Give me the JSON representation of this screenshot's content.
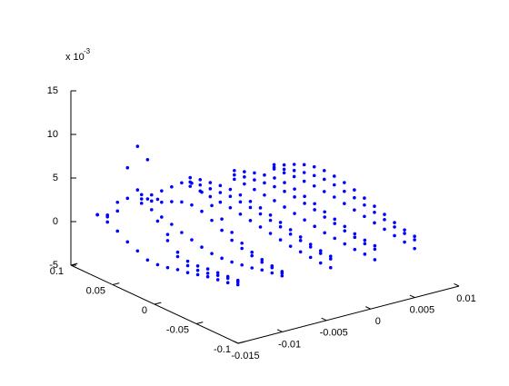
{
  "chart_data": {
    "type": "scatter3d",
    "color": "#0000ff",
    "z_multiplier": "x 10",
    "z_exponent": "-3",
    "xlim": [
      -0.015,
      0.01
    ],
    "xticks": [
      -0.015,
      -0.01,
      -0.005,
      0,
      0.005,
      0.01
    ],
    "ylim": [
      -0.1,
      0.1
    ],
    "yticks": [
      -0.1,
      -0.05,
      0,
      0.05,
      0.1
    ],
    "zlim": [
      -5,
      15
    ],
    "zticks": [
      -5,
      0,
      5,
      10,
      15
    ],
    "y": [
      0.1,
      0.088,
      0.076,
      0.064,
      0.052,
      0.04,
      0.028,
      0.016,
      0.004,
      -0.008,
      -0.02,
      -0.032,
      -0.044,
      -0.056,
      -0.068
    ],
    "series": [
      {
        "x": -0.012,
        "values": [
          0,
          0.5,
          2.5,
          7,
          10,
          9,
          5,
          1.5,
          0,
          -0.5,
          -0.5,
          -0.3,
          -0.2,
          -0.1,
          0
        ]
      },
      {
        "x": -0.012,
        "values": [
          0,
          0.3,
          1.5,
          3.5,
          5,
          4.5,
          2.5,
          0.8,
          -0.5,
          -1,
          -1,
          -0.8,
          -0.5,
          -0.3,
          -0.2
        ]
      },
      {
        "x": -0.012,
        "values": [
          0,
          -0.3,
          -0.8,
          -1.5,
          -2,
          -2.5,
          -2.5,
          -2.3,
          -2,
          -1.8,
          -1.5,
          -1.2,
          -1,
          -0.8,
          -0.5
        ]
      },
      {
        "x": -0.007,
        "values": [
          1,
          1.5,
          2.5,
          3.5,
          4.5,
          5,
          4.5,
          3.5,
          2.5,
          1.5,
          0.8,
          0.3,
          0,
          -0.2,
          -0.3
        ]
      },
      {
        "x": -0.007,
        "values": [
          0.5,
          0.8,
          1.2,
          1.8,
          2.3,
          2.5,
          2.3,
          1.8,
          1.2,
          0.6,
          0.2,
          -0.1,
          -0.3,
          -0.4,
          -0.5
        ]
      },
      {
        "x": -0.007,
        "values": [
          0,
          -0.2,
          -0.5,
          -0.8,
          -1.2,
          -1.5,
          -1.8,
          -2,
          -2,
          -1.9,
          -1.7,
          -1.5,
          -1.2,
          -1,
          -0.8
        ]
      },
      {
        "x": -0.0015,
        "values": [
          1.5,
          1.8,
          2,
          2.2,
          2.3,
          2.2,
          2,
          1.8,
          1.5,
          1.2,
          0.9,
          0.6,
          0.3,
          0.1,
          0
        ]
      },
      {
        "x": -0.0015,
        "values": [
          1,
          1.2,
          1.3,
          1.4,
          1.5,
          1.4,
          1.3,
          1.1,
          0.9,
          0.7,
          0.4,
          0.2,
          0,
          -0.2,
          -0.3
        ]
      },
      {
        "x": -0.0015,
        "values": [
          0.5,
          0.5,
          0.4,
          0.3,
          0.2,
          0,
          -0.2,
          -0.4,
          -0.6,
          -0.8,
          -1,
          -1.1,
          -1.2,
          -1.3,
          -1.3
        ]
      },
      {
        "x": 0.0035,
        "values": [
          1,
          1.4,
          1.8,
          2.1,
          2.3,
          2.3,
          2.1,
          1.8,
          1.5,
          1.1,
          0.8,
          0.5,
          0.2,
          0,
          -0.1
        ]
      },
      {
        "x": 0.0035,
        "values": [
          0.5,
          0.8,
          1,
          1.2,
          1.3,
          1.3,
          1.2,
          1,
          0.8,
          0.5,
          0.3,
          0,
          -0.2,
          -0.4,
          -0.5
        ]
      },
      {
        "x": 0.0035,
        "values": [
          0,
          0,
          -0.1,
          -0.2,
          -0.3,
          -0.5,
          -0.7,
          -0.9,
          -1.1,
          -1.3,
          -1.4,
          -1.5,
          -1.6,
          -1.6,
          -1.7
        ]
      },
      {
        "x": 0.008,
        "values": [
          0.5,
          1,
          1.6,
          2.1,
          2.4,
          2.5,
          2.4,
          2.2,
          1.9,
          1.5,
          1.1,
          0.7,
          0.3,
          0,
          -0.2
        ]
      },
      {
        "x": 0.008,
        "values": [
          0.2,
          0.5,
          0.9,
          1.2,
          1.4,
          1.5,
          1.4,
          1.2,
          1,
          0.7,
          0.4,
          0.1,
          -0.2,
          -0.4,
          -0.6
        ]
      },
      {
        "x": 0.008,
        "values": [
          0,
          0.1,
          0.2,
          0.2,
          0.2,
          0.1,
          0,
          -0.2,
          -0.4,
          -0.6,
          -0.8,
          -1,
          -1.2,
          -1.4,
          -1.6
        ]
      }
    ]
  }
}
